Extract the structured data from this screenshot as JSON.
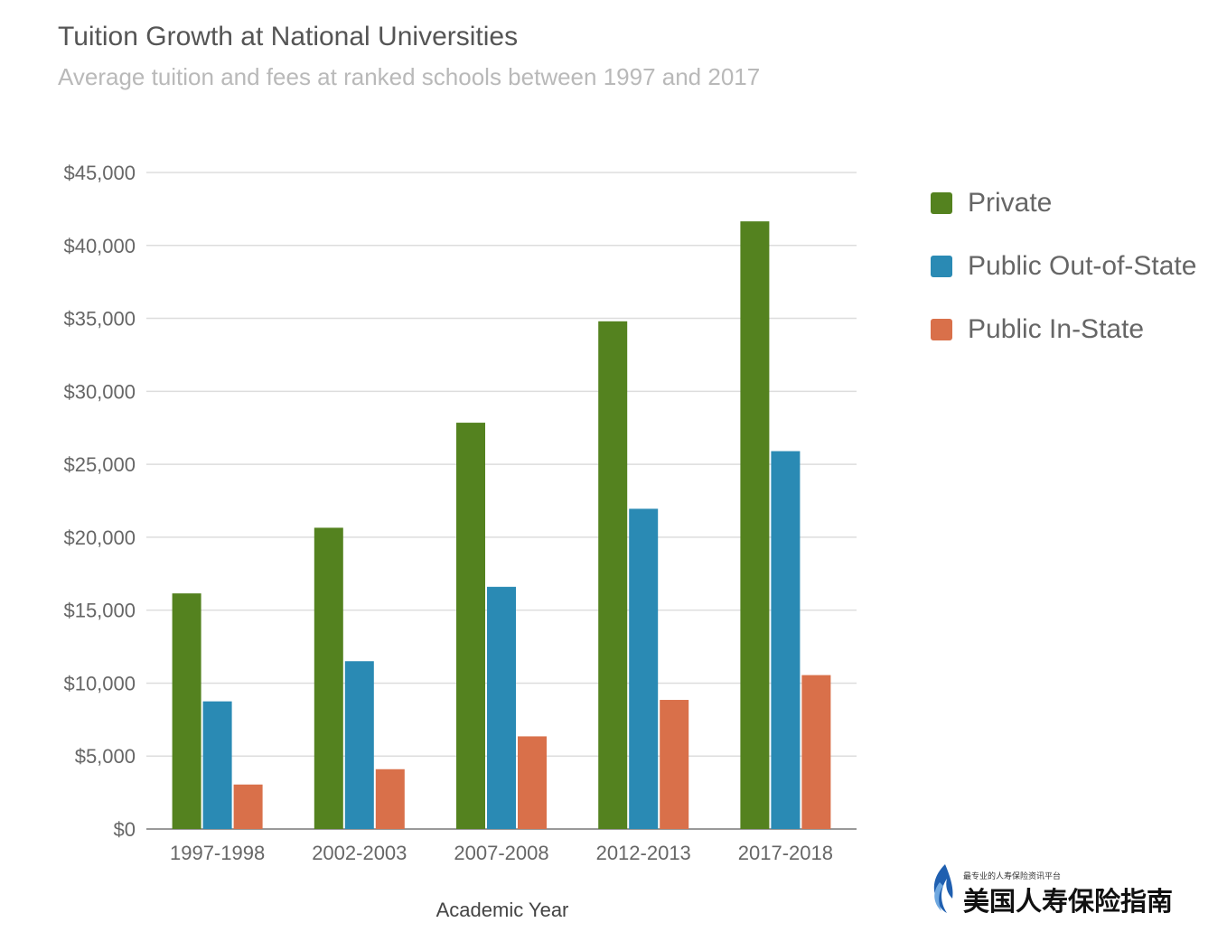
{
  "header": {
    "title": "Tuition Growth at National Universities",
    "subtitle": "Average tuition and fees at ranked schools between 1997 and 2017"
  },
  "colors": {
    "private": "#54821f",
    "public_out": "#2a8ab4",
    "public_in": "#d9704a",
    "grid": "#dddddd",
    "axis": "#999999",
    "tick_text": "#666666"
  },
  "legend": {
    "items": [
      {
        "label": "Private",
        "color": "#54821f"
      },
      {
        "label": "Public Out-of-State",
        "color": "#2a8ab4"
      },
      {
        "label": "Public In-State",
        "color": "#d9704a"
      }
    ]
  },
  "axes": {
    "xlabel": "Academic Year"
  },
  "watermark": {
    "small_text": "最专业的人寿保险资讯平台",
    "big_text": "美国人寿保险指南"
  },
  "chart_data": {
    "type": "bar",
    "title": "Tuition Growth at National Universities",
    "subtitle": "Average tuition and fees at ranked schools between 1997 and 2017",
    "xlabel": "Academic Year",
    "ylabel": "",
    "categories": [
      "1997-1998",
      "2002-2003",
      "2007-2008",
      "2012-2013",
      "2017-2018"
    ],
    "series": [
      {
        "name": "Private",
        "color": "#54821f",
        "values": [
          16150,
          20650,
          27850,
          34800,
          41650
        ]
      },
      {
        "name": "Public Out-of-State",
        "color": "#2a8ab4",
        "values": [
          8750,
          11500,
          16600,
          21950,
          25900
        ]
      },
      {
        "name": "Public In-State",
        "color": "#d9704a",
        "values": [
          3050,
          4100,
          6350,
          8850,
          10550
        ]
      }
    ],
    "ylim": [
      0,
      45000
    ],
    "yticks": [
      0,
      5000,
      10000,
      15000,
      20000,
      25000,
      30000,
      35000,
      40000,
      45000
    ],
    "ytick_labels": [
      "$0",
      "$5,000",
      "$10,000",
      "$15,000",
      "$20,000",
      "$25,000",
      "$30,000",
      "$35,000",
      "$40,000",
      "$45,000"
    ],
    "grid": true,
    "legend_position": "right"
  }
}
